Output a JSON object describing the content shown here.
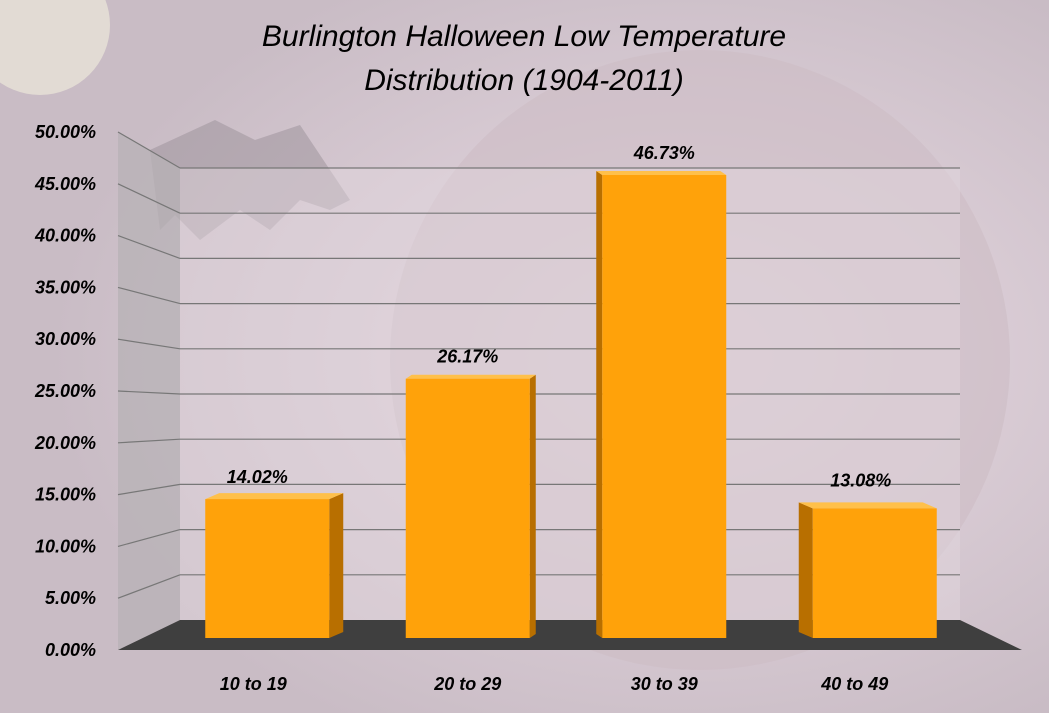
{
  "chart_data": {
    "type": "bar",
    "title_lines": [
      "Burlington Halloween Low Temperature",
      "Distribution (1904-2011)"
    ],
    "categories": [
      "10 to 19",
      "20 to 29",
      "30 to 39",
      "40 to 49"
    ],
    "values": [
      14.02,
      26.17,
      46.73,
      13.08
    ],
    "data_labels": [
      "14.02%",
      "26.17%",
      "46.73%",
      "13.08%"
    ],
    "ylim": [
      0,
      50
    ],
    "yticks": [
      0,
      5,
      10,
      15,
      20,
      25,
      30,
      35,
      40,
      45,
      50
    ],
    "ytick_labels": [
      "0.00%",
      "5.00%",
      "10.00%",
      "15.00%",
      "20.00%",
      "25.00%",
      "30.00%",
      "35.00%",
      "40.00%",
      "45.00%",
      "50.00%"
    ],
    "grid": true,
    "legend": "none",
    "colors": {
      "bar_front": "#ffa20a",
      "bar_side": "#b86f00",
      "bar_top": "#ffc04a",
      "floor": "#3f3f3f",
      "gridline": "#777777",
      "side_wall": "#b7b2b6",
      "back_wall": "#d7ccd2",
      "background": "#d9cfd6"
    }
  }
}
